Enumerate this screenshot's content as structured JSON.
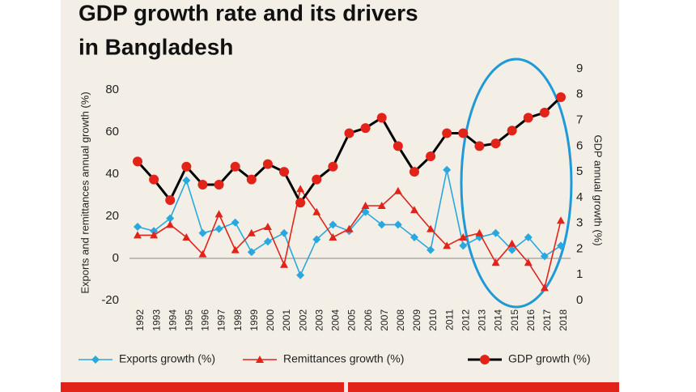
{
  "chart_data": {
    "type": "line",
    "title": [
      "GDP growth rate and its drivers",
      "in Bangladesh"
    ],
    "y_label": "Exports and remittances annual growth (%)",
    "y2_label": "GDP annual growth (%)",
    "categories": [
      "1992",
      "1993",
      "1994",
      "1995",
      "1996",
      "1997",
      "1998",
      "1999",
      "2000",
      "2001",
      "2002",
      "2003",
      "2004",
      "2005",
      "2006",
      "2007",
      "2008",
      "2009",
      "2010",
      "2011",
      "2012",
      "2013",
      "2014",
      "2015",
      "2016",
      "2017",
      "2018"
    ],
    "ylim": [
      -20,
      90
    ],
    "yticks": [
      -20,
      0,
      20,
      40,
      60,
      80
    ],
    "y2lim": [
      0,
      9
    ],
    "y2ticks": [
      0,
      1,
      2,
      3,
      4,
      5,
      6,
      7,
      8,
      9
    ],
    "series": [
      {
        "name": "Exports growth (%)",
        "color": "#29a8e0",
        "marker": "diamond",
        "values": [
          15,
          13,
          19,
          37,
          12,
          14,
          17,
          3,
          8,
          12,
          -8,
          9,
          16,
          13,
          22,
          16,
          16,
          10,
          4,
          42,
          6,
          10,
          12,
          4,
          10,
          1,
          6
        ]
      },
      {
        "name": "Remittances growth (%)",
        "color": "#e2231a",
        "marker": "triangle",
        "values": [
          11,
          11,
          16,
          10,
          2,
          21,
          4,
          12,
          15,
          -3,
          33,
          22,
          10,
          14,
          25,
          25,
          32,
          23,
          14,
          6,
          10,
          12,
          -2,
          7,
          -2,
          -14,
          18
        ]
      },
      {
        "name": "GDP growth (%)",
        "color": "#000000",
        "marker": "circle",
        "axis": "y2",
        "values": [
          5.4,
          4.7,
          3.9,
          5.2,
          4.5,
          4.5,
          5.2,
          4.7,
          5.3,
          5.0,
          3.8,
          4.7,
          5.2,
          6.5,
          6.7,
          7.1,
          6.0,
          5.0,
          5.6,
          6.5,
          6.5,
          6.0,
          6.1,
          6.6,
          7.1,
          7.3,
          7.9
        ]
      }
    ]
  }
}
